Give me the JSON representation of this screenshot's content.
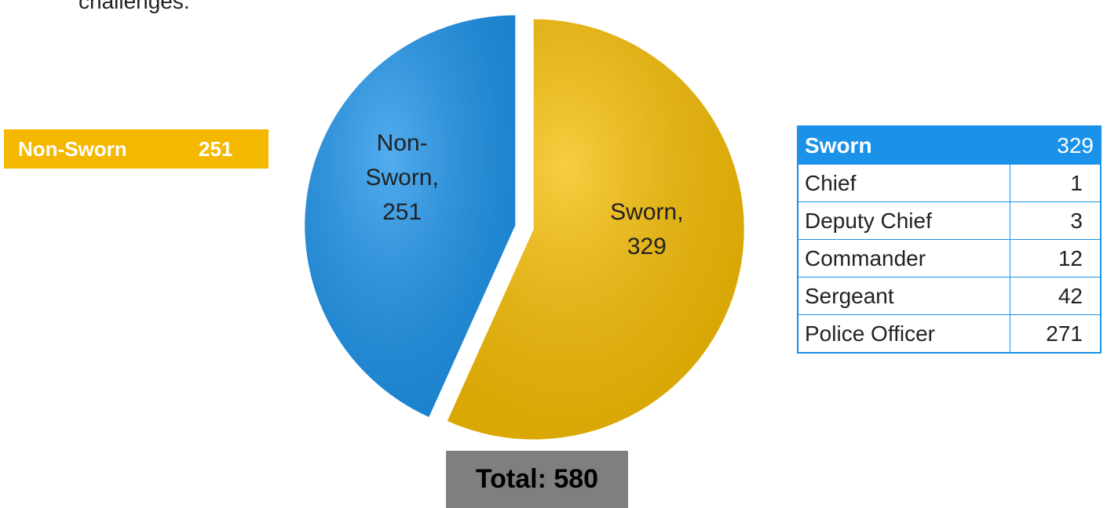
{
  "text_fragment": "challenges.",
  "side_label": {
    "label": "Non-Sworn",
    "value": 251,
    "color": "#f5b800"
  },
  "chart_data": {
    "type": "pie",
    "categories": [
      "Non-Sworn",
      "Sworn"
    ],
    "values": [
      251,
      329
    ],
    "value_labels": [
      "Non-Sworn, 251",
      "Sworn, 329"
    ],
    "colors": [
      "#1a92ea",
      "#f7bd00"
    ]
  },
  "total": "Total: 580",
  "table": {
    "header": [
      "Sworn",
      329
    ],
    "rows": [
      [
        "Chief",
        1
      ],
      [
        "Deputy Chief",
        3
      ],
      [
        "Commander",
        12
      ],
      [
        "Sergeant",
        42
      ],
      [
        "Police Officer",
        271
      ]
    ]
  }
}
